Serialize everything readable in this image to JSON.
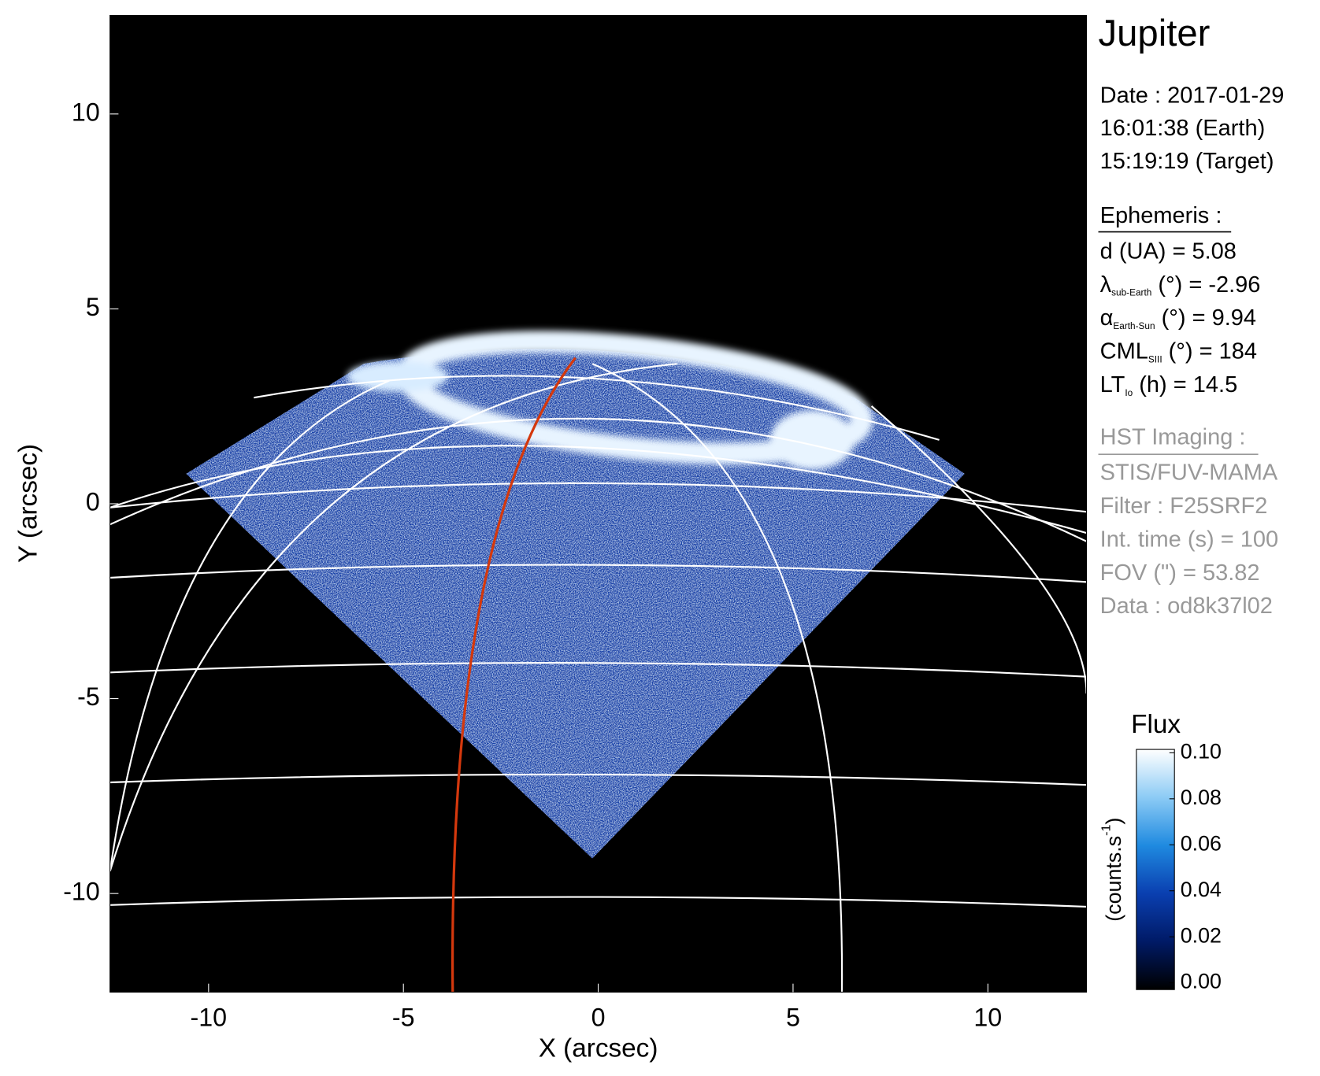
{
  "chart_data": {
    "type": "image",
    "xlabel": "X (arcsec)",
    "ylabel": "Y (arcsec)",
    "xlim": [
      -12.53,
      12.53
    ],
    "ylim": [
      -12.53,
      12.53
    ],
    "xticks": [
      -10,
      -5,
      0,
      5,
      10
    ],
    "yticks": [
      -10,
      -5,
      0,
      5,
      10
    ],
    "colorbar": {
      "title": "Flux",
      "label": "(counts.s",
      "label_sup": "-1",
      "label_end": ")",
      "clim": [
        0,
        0.1
      ],
      "ticks": [
        {
          "value": 0,
          "label": "0.00"
        },
        {
          "value": 0.02,
          "label": "0.02"
        },
        {
          "value": 0.04,
          "label": "0.04"
        },
        {
          "value": 0.06,
          "label": "0.06"
        },
        {
          "value": 0.08,
          "label": "0.08"
        },
        {
          "value": 0.1,
          "label": "0.10"
        }
      ],
      "colors": [
        "#000000",
        "#001a66",
        "#0a3fb0",
        "#1f8ae0",
        "#8ccbf5",
        "#ffffff"
      ]
    },
    "panel": {
      "title": "Jupiter",
      "date": [
        "Date : 2017-01-29",
        "16:01:38 (Earth)",
        "15:19:19 (Target)"
      ],
      "ephemeris_title": "Ephemeris :",
      "ephemeris": [
        {
          "main": "d (UA)    = 5.08"
        },
        {
          "main": "λ",
          "sub": "sub-Earth",
          "rest": " (°) = -2.96"
        },
        {
          "main": "α",
          "sub": "Earth-Sun",
          "rest": " (°) = 9.94"
        },
        {
          "main": "CML",
          "sub": "SIII",
          "rest": " (°) = 184"
        },
        {
          "main": "LT",
          "sub": "Io",
          "rest": " (h) = 14.5"
        }
      ],
      "imaging_title": "HST Imaging :",
      "imaging": [
        "STIS/FUV-MAMA",
        "Filter : F25SRF2",
        "Int. time (s) = 100",
        "FOV (\") = 53.82",
        "Data : od8k37l02"
      ]
    }
  }
}
